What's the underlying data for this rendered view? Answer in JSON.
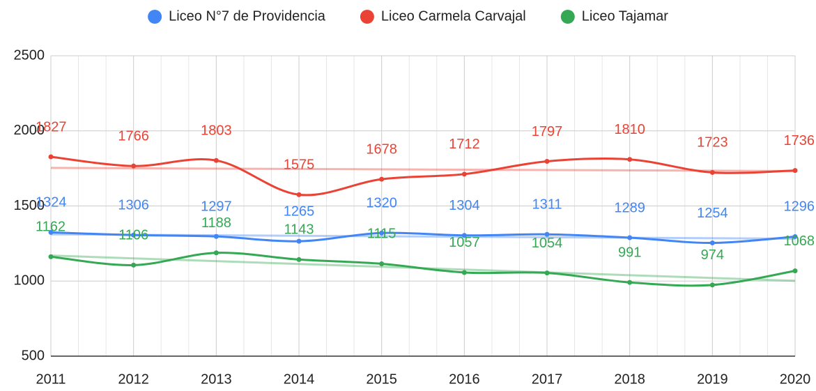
{
  "chart_data": {
    "type": "line",
    "x": [
      2011,
      2012,
      2013,
      2014,
      2015,
      2016,
      2017,
      2018,
      2019,
      2020
    ],
    "series": [
      {
        "name": "Liceo N°7 de Providencia",
        "color": "#4285f4",
        "values": [
          1324,
          1306,
          1297,
          1265,
          1320,
          1304,
          1311,
          1289,
          1254,
          1296
        ]
      },
      {
        "name": "Liceo Carmela Carvajal",
        "color": "#ea4335",
        "values": [
          1827,
          1766,
          1803,
          1575,
          1678,
          1712,
          1797,
          1810,
          1723,
          1736
        ]
      },
      {
        "name": "Liceo Tajamar",
        "color": "#34a853",
        "values": [
          1162,
          1106,
          1188,
          1143,
          1115,
          1057,
          1054,
          991,
          974,
          1068
        ]
      }
    ],
    "xlim": [
      2011,
      2020
    ],
    "xticks": [
      2011,
      2012,
      2013,
      2014,
      2015,
      2016,
      2017,
      2018,
      2019,
      2020
    ],
    "ylim": [
      500,
      2500
    ],
    "yticks": [
      500,
      1000,
      1500,
      2000,
      2500
    ],
    "grid": true,
    "legend": "top",
    "trendline": true,
    "smooth": true,
    "data_labels": true
  }
}
